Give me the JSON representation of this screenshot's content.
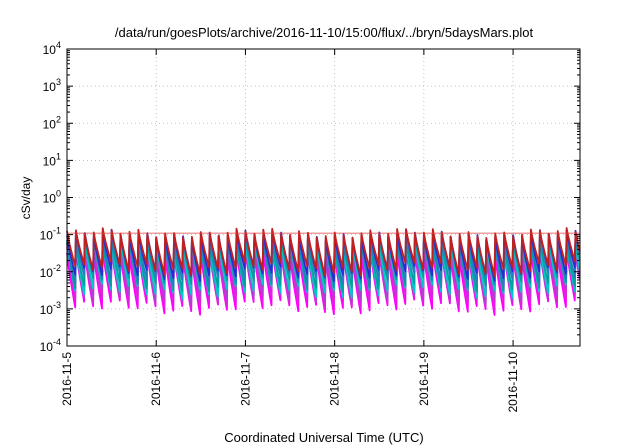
{
  "chart_data": {
    "type": "line",
    "title": "/data/run/goesPlots/archive/2016-11-10/15:00/flux/../bryn/5daysMars.plot",
    "xlabel": "Coordinated Universal Time (UTC)",
    "ylabel": "cSv/day",
    "y_scale": "log",
    "ylim": [
      0.0001,
      10000
    ],
    "xlim": [
      "2016-11-05",
      "2016-11-10T18:00"
    ],
    "y_ticks": [
      {
        "base": "10",
        "exp": "4"
      },
      {
        "base": "10",
        "exp": "3"
      },
      {
        "base": "10",
        "exp": "2"
      },
      {
        "base": "10",
        "exp": "1"
      },
      {
        "base": "10",
        "exp": "0"
      },
      {
        "base": "10",
        "exp": "-1"
      },
      {
        "base": "10",
        "exp": "-2"
      },
      {
        "base": "10",
        "exp": "-3"
      },
      {
        "base": "10",
        "exp": "-4"
      }
    ],
    "x_ticks": [
      "2016-11-5",
      "2016-11-6",
      "2016-11-7",
      "2016-11-8",
      "2016-11-9",
      "2016-11-10"
    ],
    "grid": true,
    "legend": "none",
    "series": [
      {
        "color": "#ff00ff",
        "peak": 0.032,
        "trough": 0.0011
      },
      {
        "color": "#dd22dd",
        "peak": 0.04,
        "trough": 0.0016
      },
      {
        "color": "#aa44cc",
        "peak": 0.05,
        "trough": 0.0022
      },
      {
        "color": "#00c8c8",
        "peak": 0.06,
        "trough": 0.003
      },
      {
        "color": "#00a0a0",
        "peak": 0.07,
        "trough": 0.0045
      },
      {
        "color": "#2080c0",
        "peak": 0.085,
        "trough": 0.0065
      },
      {
        "color": "#2b2bd4",
        "peak": 0.1,
        "trough": 0.009
      },
      {
        "color": "#c02020",
        "peak": 0.11,
        "trough": 0.012
      }
    ],
    "pattern": {
      "cycle_days": 0.1,
      "shape": "sawtooth-decay"
    }
  }
}
